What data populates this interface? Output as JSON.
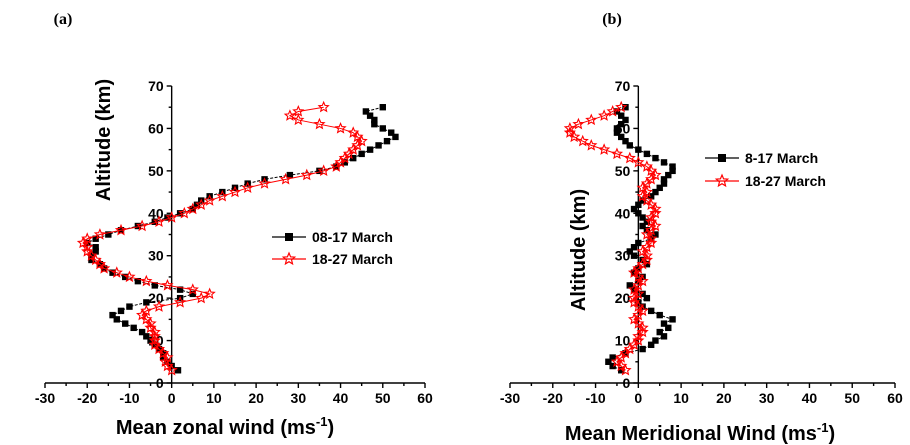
{
  "chart_data": [
    {
      "type": "line",
      "panel_label": "(a)",
      "xlabel_main": "Mean zonal wind (ms",
      "xlabel_sup": "-1",
      "xlabel_end": ")",
      "ylabel": "Altitude (km)",
      "xlim": [
        -30,
        60
      ],
      "ylim": [
        0,
        70
      ],
      "xticks": [
        "-30",
        "-20",
        "-10",
        "0",
        "10",
        "20",
        "30",
        "40",
        "50",
        "60"
      ],
      "yticks": [
        "0",
        "10",
        "20",
        "30",
        "40",
        "50",
        "60",
        "70"
      ],
      "legend_position": "center-right",
      "series": [
        {
          "name": "08-17 March",
          "color": "#000000",
          "marker": "square",
          "points": [
            [
              1.5,
              3
            ],
            [
              0,
              4
            ],
            [
              -1,
              5
            ],
            [
              -2,
              6
            ],
            [
              -2,
              7
            ],
            [
              -3,
              8
            ],
            [
              -4,
              9
            ],
            [
              -5,
              10
            ],
            [
              -6,
              11
            ],
            [
              -7,
              12
            ],
            [
              -9,
              13
            ],
            [
              -11,
              14
            ],
            [
              -13,
              15
            ],
            [
              -14,
              16
            ],
            [
              -12,
              17
            ],
            [
              -10,
              18
            ],
            [
              -6,
              19
            ],
            [
              2,
              20
            ],
            [
              5,
              21
            ],
            [
              2,
              22
            ],
            [
              -4,
              23
            ],
            [
              -8,
              24
            ],
            [
              -11,
              25
            ],
            [
              -14,
              26
            ],
            [
              -16,
              27
            ],
            [
              -17,
              28
            ],
            [
              -19,
              29
            ],
            [
              -19,
              30
            ],
            [
              -18,
              31
            ],
            [
              -18,
              32
            ],
            [
              -20,
              33
            ],
            [
              -18,
              34
            ],
            [
              -15,
              35
            ],
            [
              -12,
              36
            ],
            [
              -8,
              37
            ],
            [
              -4,
              38
            ],
            [
              -1,
              39
            ],
            [
              2,
              40
            ],
            [
              5,
              41
            ],
            [
              6,
              42
            ],
            [
              7,
              43
            ],
            [
              9,
              44
            ],
            [
              12,
              45
            ],
            [
              15,
              46
            ],
            [
              18,
              47
            ],
            [
              22,
              48
            ],
            [
              28,
              49
            ],
            [
              35,
              50
            ],
            [
              39,
              51
            ],
            [
              41,
              52
            ],
            [
              43,
              53
            ],
            [
              45,
              54
            ],
            [
              47,
              55
            ],
            [
              49,
              56
            ],
            [
              51,
              57
            ],
            [
              53,
              58
            ],
            [
              52,
              59
            ],
            [
              50,
              60
            ],
            [
              48,
              61
            ],
            [
              48,
              62
            ],
            [
              47,
              63
            ],
            [
              46,
              64
            ],
            [
              50,
              65
            ]
          ]
        },
        {
          "name": "18-27 March",
          "color": "#ff0000",
          "marker": "star",
          "points": [
            [
              0,
              3
            ],
            [
              -1,
              4
            ],
            [
              -1.5,
              5
            ],
            [
              -1,
              6
            ],
            [
              -2,
              7
            ],
            [
              -3,
              8
            ],
            [
              -4,
              9
            ],
            [
              -4,
              10
            ],
            [
              -4,
              11
            ],
            [
              -4,
              12
            ],
            [
              -5,
              13
            ],
            [
              -5,
              14
            ],
            [
              -6,
              15
            ],
            [
              -7,
              16
            ],
            [
              -6,
              17
            ],
            [
              -3,
              18
            ],
            [
              2,
              19
            ],
            [
              7,
              20
            ],
            [
              9,
              21
            ],
            [
              5,
              22
            ],
            [
              -1,
              23
            ],
            [
              -6,
              24
            ],
            [
              -10,
              25
            ],
            [
              -13,
              26
            ],
            [
              -16,
              27
            ],
            [
              -17,
              28
            ],
            [
              -18,
              29
            ],
            [
              -19,
              30
            ],
            [
              -20,
              31
            ],
            [
              -20,
              32
            ],
            [
              -21,
              33
            ],
            [
              -20,
              34
            ],
            [
              -17,
              35
            ],
            [
              -12,
              36
            ],
            [
              -7,
              37
            ],
            [
              -3,
              38
            ],
            [
              0,
              39
            ],
            [
              3,
              40
            ],
            [
              5,
              41
            ],
            [
              7,
              42
            ],
            [
              9,
              43
            ],
            [
              12,
              44
            ],
            [
              15,
              45
            ],
            [
              18,
              46
            ],
            [
              22,
              47
            ],
            [
              27,
              48
            ],
            [
              32,
              49
            ],
            [
              36,
              50
            ],
            [
              39,
              51
            ],
            [
              40,
              52
            ],
            [
              41,
              53
            ],
            [
              42,
              54
            ],
            [
              43,
              55
            ],
            [
              44,
              56
            ],
            [
              45,
              57
            ],
            [
              44,
              58
            ],
            [
              43,
              59
            ],
            [
              40,
              60
            ],
            [
              35,
              61
            ],
            [
              30,
              62
            ],
            [
              28,
              63
            ],
            [
              30,
              64
            ],
            [
              36,
              65
            ]
          ]
        }
      ]
    },
    {
      "type": "line",
      "panel_label": "(b)",
      "xlabel_main": "Mean Meridional Wind (ms",
      "xlabel_sup": "-1",
      "xlabel_end": ")",
      "ylabel": "Altitude (km)",
      "xlim": [
        -30,
        60
      ],
      "ylim": [
        0,
        70
      ],
      "xticks": [
        "-30",
        "-20",
        "-10",
        "0",
        "10",
        "20",
        "30",
        "40",
        "50",
        "60"
      ],
      "yticks": [
        "0",
        "10",
        "20",
        "30",
        "40",
        "50",
        "60",
        "70"
      ],
      "legend_position": "top-right",
      "series": [
        {
          "name": "8-17 March",
          "color": "#000000",
          "marker": "square",
          "points": [
            [
              -4,
              3
            ],
            [
              -6,
              4
            ],
            [
              -7,
              5
            ],
            [
              -6,
              6
            ],
            [
              -3,
              7
            ],
            [
              1,
              8
            ],
            [
              3,
              9
            ],
            [
              4,
              10
            ],
            [
              6,
              11
            ],
            [
              5,
              12
            ],
            [
              7,
              13
            ],
            [
              6,
              14
            ],
            [
              8,
              15
            ],
            [
              5,
              16
            ],
            [
              3,
              17
            ],
            [
              1,
              18
            ],
            [
              0,
              19
            ],
            [
              2,
              20
            ],
            [
              1,
              21
            ],
            [
              -1,
              22
            ],
            [
              -2,
              23
            ],
            [
              0,
              24
            ],
            [
              1,
              25
            ],
            [
              -1,
              26
            ],
            [
              0,
              27
            ],
            [
              2,
              28
            ],
            [
              1,
              29
            ],
            [
              -1,
              30
            ],
            [
              -2,
              31
            ],
            [
              -1,
              32
            ],
            [
              0,
              33
            ],
            [
              3,
              34
            ],
            [
              4,
              35
            ],
            [
              2,
              36
            ],
            [
              1,
              37
            ],
            [
              2,
              38
            ],
            [
              1,
              39
            ],
            [
              0,
              40
            ],
            [
              -1,
              41
            ],
            [
              0,
              42
            ],
            [
              1,
              43
            ],
            [
              3,
              44
            ],
            [
              4,
              45
            ],
            [
              5,
              46
            ],
            [
              6,
              47
            ],
            [
              6,
              48
            ],
            [
              7,
              49
            ],
            [
              8,
              50
            ],
            [
              8,
              51
            ],
            [
              6,
              52
            ],
            [
              4,
              53
            ],
            [
              2,
              54
            ],
            [
              0,
              55
            ],
            [
              -2,
              56
            ],
            [
              -3,
              57
            ],
            [
              -4,
              58
            ],
            [
              -5,
              59
            ],
            [
              -5,
              60
            ],
            [
              -4,
              61
            ],
            [
              -3,
              62
            ],
            [
              -4,
              63
            ],
            [
              -5,
              64
            ],
            [
              -3,
              65
            ]
          ]
        },
        {
          "name": "18-27 March",
          "color": "#ff0000",
          "marker": "star",
          "points": [
            [
              -3,
              3
            ],
            [
              -4,
              4
            ],
            [
              -5,
              5
            ],
            [
              -4,
              6
            ],
            [
              -3,
              7
            ],
            [
              -2,
              8
            ],
            [
              -1,
              9
            ],
            [
              0,
              10
            ],
            [
              0,
              11
            ],
            [
              1,
              12
            ],
            [
              1,
              13
            ],
            [
              0,
              14
            ],
            [
              -1,
              15
            ],
            [
              0,
              16
            ],
            [
              1,
              17
            ],
            [
              0,
              18
            ],
            [
              -1,
              19
            ],
            [
              -1,
              20
            ],
            [
              0,
              21
            ],
            [
              -1,
              22
            ],
            [
              0,
              23
            ],
            [
              1,
              24
            ],
            [
              0,
              25
            ],
            [
              -1,
              26
            ],
            [
              0,
              27
            ],
            [
              1,
              28
            ],
            [
              2,
              29
            ],
            [
              2,
              30
            ],
            [
              1,
              31
            ],
            [
              2,
              32
            ],
            [
              3,
              33
            ],
            [
              3,
              34
            ],
            [
              2,
              35
            ],
            [
              3,
              36
            ],
            [
              4,
              37
            ],
            [
              3,
              38
            ],
            [
              3,
              39
            ],
            [
              4,
              40
            ],
            [
              4,
              41
            ],
            [
              3,
              42
            ],
            [
              2,
              43
            ],
            [
              1,
              44
            ],
            [
              2,
              45
            ],
            [
              1,
              46
            ],
            [
              2,
              47
            ],
            [
              3,
              48
            ],
            [
              4,
              49
            ],
            [
              3,
              50
            ],
            [
              2,
              51
            ],
            [
              0,
              52
            ],
            [
              -2,
              53
            ],
            [
              -5,
              54
            ],
            [
              -8,
              55
            ],
            [
              -11,
              56
            ],
            [
              -13,
              57
            ],
            [
              -15,
              58
            ],
            [
              -16,
              59
            ],
            [
              -16,
              60
            ],
            [
              -14,
              61
            ],
            [
              -11,
              62
            ],
            [
              -8,
              63
            ],
            [
              -6,
              64
            ],
            [
              -4,
              65
            ]
          ]
        }
      ]
    }
  ]
}
